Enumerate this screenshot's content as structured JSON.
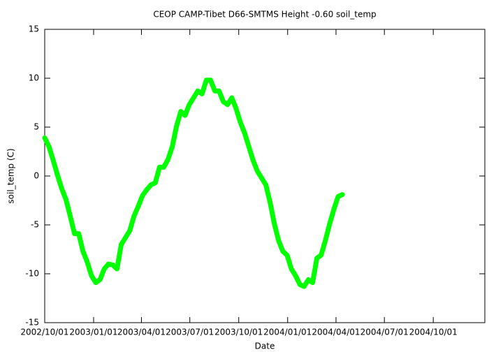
{
  "chart_data": {
    "type": "line",
    "title": "CEOP CAMP-Tibet D66-SMTMS Height -0.60 soil_temp",
    "x_label": "Date",
    "y_label": "soil_temp (C)",
    "x": [
      "2002-10-01",
      "2002-10-09",
      "2002-10-17",
      "2002-10-25",
      "2002-11-02",
      "2002-11-10",
      "2002-11-18",
      "2002-11-26",
      "2002-12-04",
      "2002-12-12",
      "2002-12-20",
      "2002-12-28",
      "2003-01-05",
      "2003-01-13",
      "2003-01-21",
      "2003-01-29",
      "2003-02-06",
      "2003-02-14",
      "2003-02-22",
      "2003-03-02",
      "2003-03-10",
      "2003-03-18",
      "2003-03-26",
      "2003-04-03",
      "2003-04-11",
      "2003-04-19",
      "2003-04-27",
      "2003-05-05",
      "2003-05-13",
      "2003-05-21",
      "2003-05-29",
      "2003-06-06",
      "2003-06-14",
      "2003-06-22",
      "2003-06-30",
      "2003-07-08",
      "2003-07-16",
      "2003-07-24",
      "2003-08-01",
      "2003-08-09",
      "2003-08-17",
      "2003-08-25",
      "2003-09-02",
      "2003-09-10",
      "2003-09-18",
      "2003-09-26",
      "2003-10-04",
      "2003-10-12",
      "2003-10-20",
      "2003-10-28",
      "2003-11-05",
      "2003-11-13",
      "2003-11-21",
      "2003-11-29",
      "2003-12-07",
      "2003-12-15",
      "2003-12-23",
      "2003-12-31",
      "2004-01-08",
      "2004-01-16",
      "2004-01-24",
      "2004-02-01",
      "2004-02-09",
      "2004-02-17",
      "2004-02-25",
      "2004-03-04",
      "2004-03-12",
      "2004-03-20",
      "2004-03-28",
      "2004-04-05",
      "2004-04-13"
    ],
    "values": [
      3.9,
      3.0,
      1.6,
      0.1,
      -1.3,
      -2.4,
      -4.1,
      -5.9,
      -5.9,
      -7.7,
      -8.8,
      -10.2,
      -10.9,
      -10.6,
      -9.5,
      -9.0,
      -9.1,
      -9.5,
      -7.0,
      -6.3,
      -5.6,
      -4.1,
      -3.1,
      -2.0,
      -1.4,
      -0.9,
      -0.7,
      0.9,
      0.9,
      1.7,
      3.0,
      5.1,
      6.6,
      6.2,
      7.3,
      8.0,
      8.7,
      8.4,
      9.8,
      9.8,
      8.7,
      8.7,
      7.6,
      7.3,
      8.0,
      6.9,
      5.5,
      4.4,
      3.0,
      1.6,
      0.5,
      -0.2,
      -0.9,
      -2.7,
      -4.9,
      -6.6,
      -7.7,
      -8.1,
      -9.5,
      -10.2,
      -11.1,
      -11.3,
      -10.6,
      -10.9,
      -8.4,
      -8.1,
      -6.6,
      -4.9,
      -3.4,
      -2.1,
      -1.9
    ],
    "color": "#00ff00",
    "xlim": [
      "2002-10-01",
      "2005-01-06"
    ],
    "xticks": [
      {
        "value": "2002-10-01",
        "label": "2002/10/01"
      },
      {
        "value": "2003-01-01",
        "label": "2003/01/01"
      },
      {
        "value": "2003-04-01",
        "label": "2003/04/01"
      },
      {
        "value": "2003-07-01",
        "label": "2003/07/01"
      },
      {
        "value": "2003-10-01",
        "label": "2003/10/01"
      },
      {
        "value": "2004-01-01",
        "label": "2004/01/01"
      },
      {
        "value": "2004-04-01",
        "label": "2004/04/01"
      },
      {
        "value": "2004-07-01",
        "label": "2004/07/01"
      },
      {
        "value": "2004-10-01",
        "label": "2004/10/01"
      }
    ],
    "ylim": [
      -15,
      15
    ],
    "yticks": [
      -15,
      -10,
      -5,
      0,
      5,
      10,
      15
    ],
    "grid": false
  }
}
